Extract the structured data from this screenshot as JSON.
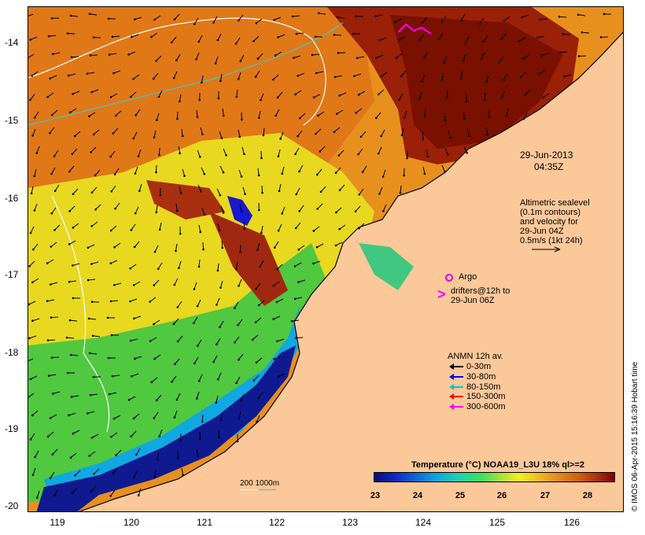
{
  "axes": {
    "y_ticks": [
      "-14",
      "-15",
      "-16",
      "-17",
      "-18",
      "-19",
      "-20"
    ],
    "x_ticks": [
      "119",
      "120",
      "121",
      "122",
      "123",
      "124",
      "125",
      "126"
    ]
  },
  "annotations": {
    "date": "29-Jun-2013",
    "time": "04:35Z",
    "altimetry_lines": [
      "Altimetric sealevel",
      "(0.1m contours)",
      "and velocity for",
      "29-Jun 04Z",
      "0.5m/s (1kt 24h)"
    ],
    "argo_label": "Argo",
    "drifters_lines": [
      "drifters@12h to",
      "29-Jun 06Z"
    ],
    "anmn_title": "ANMN 12h av.",
    "anmn_entries": [
      {
        "label": "0-30m",
        "color": "#000000"
      },
      {
        "label": "30-80m",
        "color": "#0000ff"
      },
      {
        "label": "80-150m",
        "color": "#00c8d0"
      },
      {
        "label": "150-300m",
        "color": "#ff0000"
      },
      {
        "label": "300-600m",
        "color": "#ff00ff"
      }
    ],
    "depth_legend": "200  1000m"
  },
  "colorbar": {
    "title": "Temperature (°C) NOAA19_L3U 18% ql>=2",
    "ticks": [
      "23",
      "24",
      "25",
      "26",
      "27",
      "28"
    ]
  },
  "credit": "© IMOS 06-Apr-2015 15:16:39 Hobart time",
  "colors": {
    "land": "#fbc89a",
    "argo": "#e000e0",
    "drifter": "#ff00ff",
    "contour_200": "#ffffff",
    "contour_1000": "#40c8c0"
  }
}
